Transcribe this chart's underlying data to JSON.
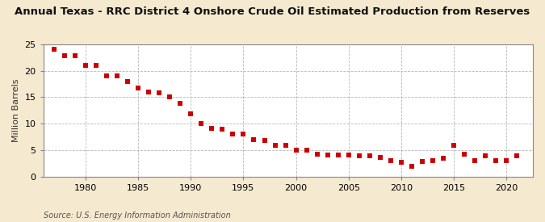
{
  "title": "Annual Texas - RRC District 4 Onshore Crude Oil Estimated Production from Reserves",
  "ylabel": "Million Barrels",
  "source": "Source: U.S. Energy Information Administration",
  "fig_background_color": "#f5e9d0",
  "plot_background_color": "#ffffff",
  "marker_color": "#cc0000",
  "grid_color": "#b0b0b0",
  "spine_color": "#888888",
  "years": [
    1977,
    1978,
    1979,
    1980,
    1981,
    1982,
    1983,
    1984,
    1985,
    1986,
    1987,
    1988,
    1989,
    1990,
    1991,
    1992,
    1993,
    1994,
    1995,
    1996,
    1997,
    1998,
    1999,
    2000,
    2001,
    2002,
    2003,
    2004,
    2005,
    2006,
    2007,
    2008,
    2009,
    2010,
    2011,
    2012,
    2013,
    2014,
    2015,
    2016,
    2017,
    2018,
    2019,
    2020,
    2021
  ],
  "values": [
    24.0,
    22.8,
    22.8,
    21.0,
    21.0,
    19.1,
    19.1,
    17.9,
    16.8,
    16.0,
    15.8,
    15.0,
    13.9,
    11.8,
    10.1,
    9.1,
    9.0,
    8.0,
    8.0,
    7.0,
    6.8,
    5.9,
    5.9,
    5.0,
    5.0,
    4.2,
    4.1,
    4.1,
    4.1,
    4.0,
    3.9,
    3.7,
    3.0,
    2.8,
    2.0,
    2.9,
    3.0,
    3.5,
    5.9,
    4.2,
    3.0,
    4.0,
    3.0,
    3.0,
    4.0
  ],
  "xlim": [
    1976,
    2022.5
  ],
  "ylim": [
    0,
    25
  ],
  "yticks": [
    0,
    5,
    10,
    15,
    20,
    25
  ],
  "xticks": [
    1980,
    1985,
    1990,
    1995,
    2000,
    2005,
    2010,
    2015,
    2020
  ],
  "title_fontsize": 9.5,
  "ylabel_fontsize": 8,
  "tick_fontsize": 8,
  "source_fontsize": 7,
  "marker_size": 16
}
